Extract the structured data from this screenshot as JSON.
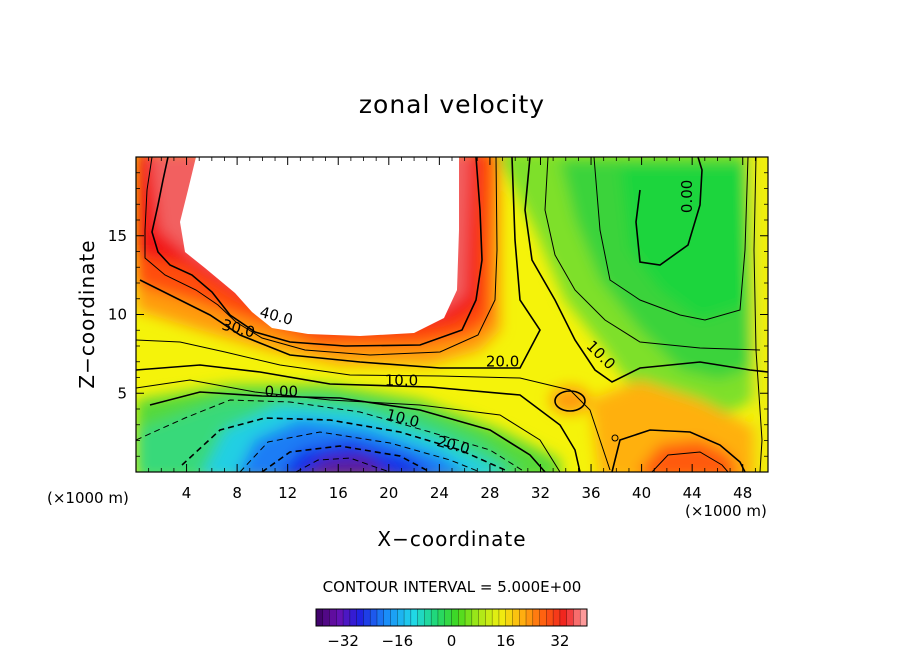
{
  "chart_data": {
    "type": "contour",
    "title": "zonal velocity",
    "xlabel": "X−coordinate",
    "ylabel": "Z−coordinate",
    "x_unit": "(×1000 m)",
    "y_unit": "(×1000 m)",
    "xlim": [
      0,
      50
    ],
    "ylim": [
      0,
      20
    ],
    "x_ticks": [
      4,
      8,
      12,
      16,
      20,
      24,
      28,
      32,
      36,
      40,
      44,
      48
    ],
    "y_ticks": [
      5,
      10,
      15
    ],
    "contour_interval_text": "CONTOUR INTERVAL = 5.000E+00",
    "contour_interval": 5,
    "contour_labels": [
      {
        "text": "40.0",
        "x": 11,
        "y": 9.6
      },
      {
        "text": "30.0",
        "x": 8,
        "y": 8.8
      },
      {
        "text": "20.0",
        "x": 29,
        "y": 6.7
      },
      {
        "text": "10.0",
        "x": 21,
        "y": 5.5
      },
      {
        "text": "0.00",
        "x": 11.5,
        "y": 4.8
      },
      {
        "text": "10.0",
        "x": 21,
        "y": 3.1
      },
      {
        "text": "20.0",
        "x": 25,
        "y": 1.4
      },
      {
        "text": "10.0",
        "x": 36.5,
        "y": 7.2
      },
      {
        "text": "0.00",
        "x": 44,
        "y": 17.5
      }
    ],
    "colorbar": {
      "range": [
        -40,
        40
      ],
      "ticks": [
        "-32",
        "-16",
        "0",
        "16",
        "32"
      ],
      "tick_values": [
        -32,
        -16,
        0,
        16,
        32
      ],
      "colormap": "rainbow (purple-blue-cyan-green-yellow-orange-red-pink)"
    },
    "features": [
      {
        "kind": "max",
        "description": "white (above scale) region",
        "x_range": [
          5,
          27
        ],
        "z_range": [
          10,
          20
        ]
      },
      {
        "kind": "min",
        "description": "negative velocity core (dark blue)",
        "x": 17,
        "z": 0.5,
        "approx_value": -30
      },
      {
        "kind": "local_max",
        "description": "orange/red patch near bottom right",
        "x": 43.5,
        "z": 0.6,
        "approx_value": 30
      },
      {
        "kind": "small_closed_contour",
        "x": 34,
        "z": 4.5
      }
    ]
  }
}
